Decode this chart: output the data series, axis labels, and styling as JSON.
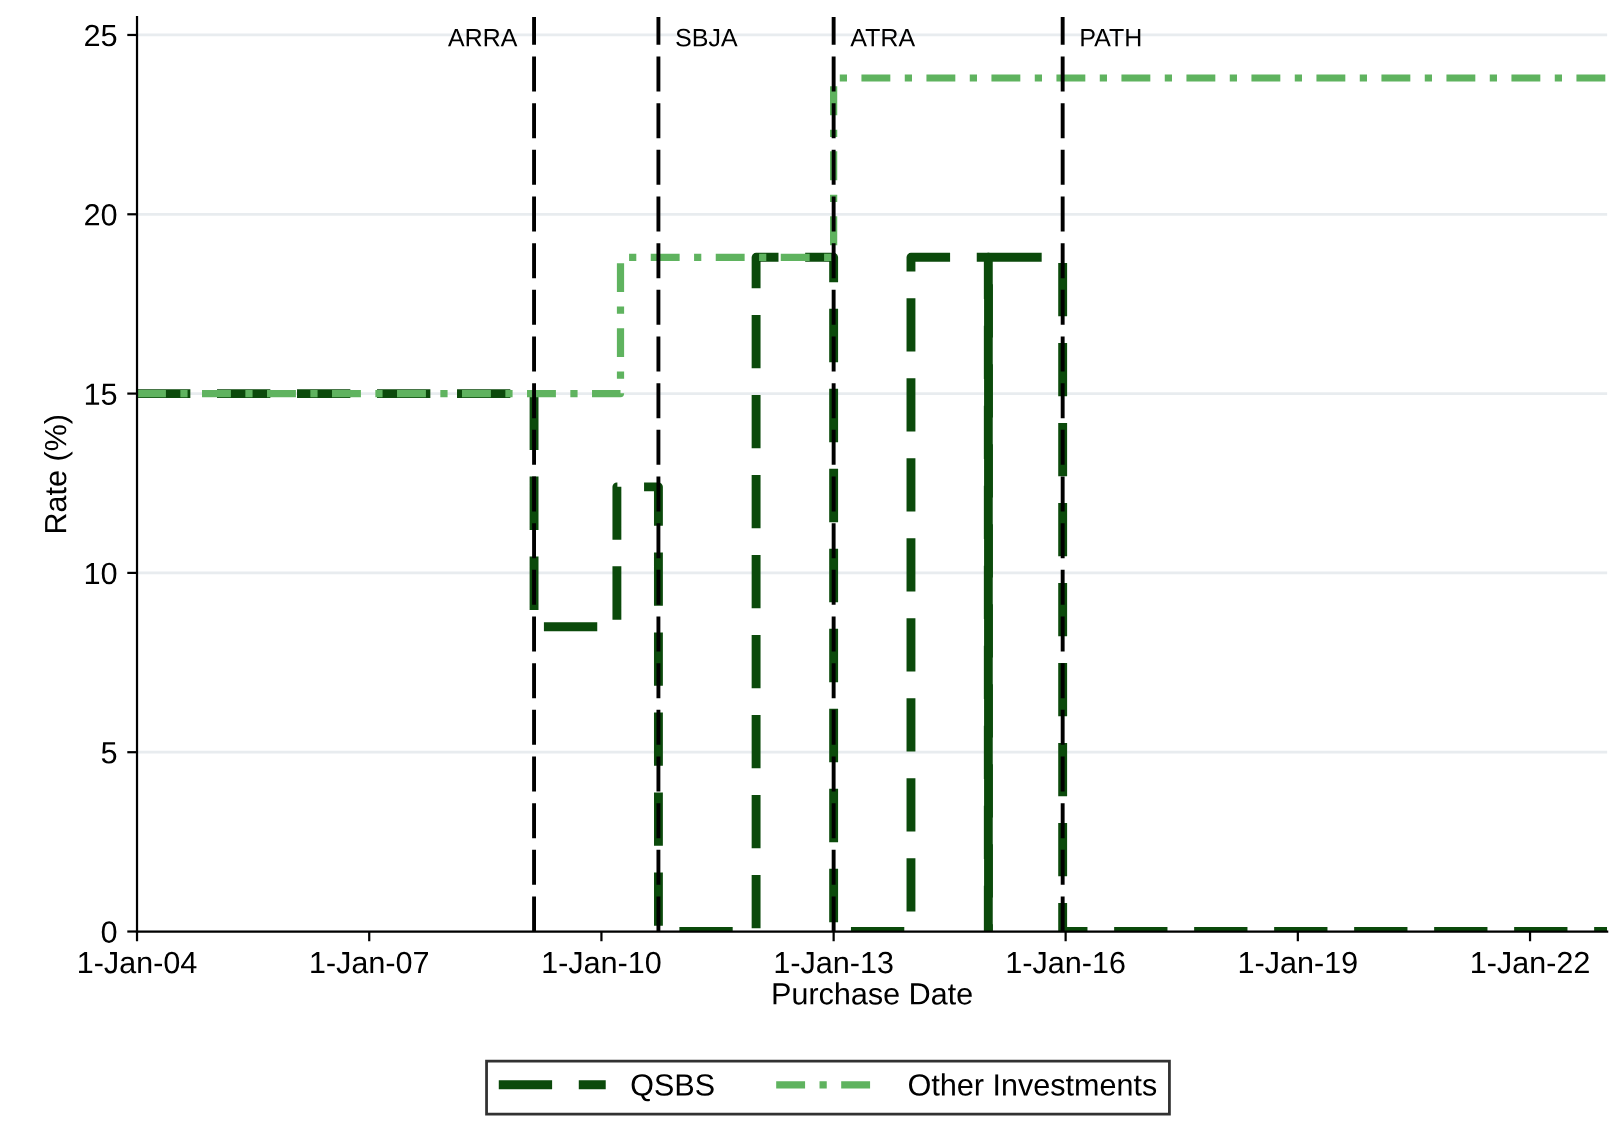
{
  "chart_data": {
    "type": "step",
    "xlabel": "Purchase Date",
    "ylabel": "Rate (%)",
    "xlim": [
      "2004-01-01",
      "2022-12-31"
    ],
    "xticks": [
      {
        "value": "2004-01-01",
        "label": "1-Jan-04"
      },
      {
        "value": "2007-01-01",
        "label": "1-Jan-07"
      },
      {
        "value": "2010-01-01",
        "label": "1-Jan-10"
      },
      {
        "value": "2013-01-01",
        "label": "1-Jan-13"
      },
      {
        "value": "2016-01-01",
        "label": "1-Jan-16"
      },
      {
        "value": "2019-01-01",
        "label": "1-Jan-19"
      },
      {
        "value": "2022-01-01",
        "label": "1-Jan-22"
      }
    ],
    "ylim": [
      0,
      25.5
    ],
    "yticks": [
      0,
      5,
      10,
      15,
      20,
      25
    ],
    "grid": "y",
    "legend": "bottom",
    "series": [
      {
        "name": "QSBS",
        "color": "#0b4a0b",
        "line_style": "dashed",
        "x": [
          "2004-01-01",
          "2009-02-17",
          "2010-03-15",
          "2010-09-27",
          "2012-01-01",
          "2013-01-01",
          "2014-01-01",
          "2015-01-01",
          "2015-01-02",
          "2015-12-18",
          "2022-12-31"
        ],
        "values": [
          15,
          8.5,
          12.4,
          0,
          18.8,
          0,
          18.8,
          0,
          18.8,
          0,
          0
        ]
      },
      {
        "name": "Other Investments",
        "color": "#5fb35f",
        "line_style": "dashdot",
        "x": [
          "2004-01-01",
          "2010-04-01",
          "2013-01-01",
          "2022-12-31"
        ],
        "values": [
          15,
          18.8,
          23.8,
          23.8
        ]
      }
    ],
    "ref_lines": [
      {
        "axis": "x",
        "value": "2009-02-17",
        "label": "ARRA",
        "color": "#000000",
        "line_style": "dashed"
      },
      {
        "axis": "x",
        "value": "2010-09-27",
        "label": "SBJA",
        "color": "#000000",
        "line_style": "dashed"
      },
      {
        "axis": "x",
        "value": "2013-01-01",
        "label": "ATRA",
        "color": "#000000",
        "line_style": "dashed"
      },
      {
        "axis": "x",
        "value": "2015-12-18",
        "label": "PATH",
        "color": "#000000",
        "line_style": "dashed"
      }
    ]
  }
}
